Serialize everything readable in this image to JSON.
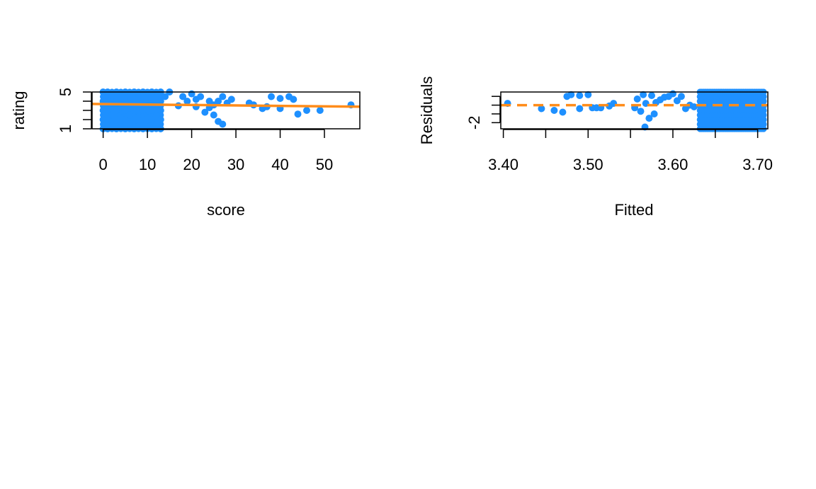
{
  "colors": {
    "points": "#1e90ff",
    "line": "#ff8c1a",
    "axis": "#000000",
    "background": "#ffffff"
  },
  "chart_data": [
    {
      "type": "scatter",
      "xlabel": "score",
      "ylabel": "rating",
      "xlim": [
        -2.5,
        58
      ],
      "ylim": [
        1,
        5
      ],
      "xticks": [
        0,
        10,
        20,
        30,
        40,
        50
      ],
      "xtick_labels": [
        "0",
        "10",
        "20",
        "30",
        "40",
        "50"
      ],
      "yticks": [
        1,
        2,
        3,
        4,
        5
      ],
      "ytick_labels": [
        "1",
        "",
        "",
        "",
        "5"
      ],
      "points": [
        [
          0,
          1
        ],
        [
          0,
          2
        ],
        [
          0,
          3
        ],
        [
          0,
          4
        ],
        [
          0,
          5
        ],
        [
          1,
          1
        ],
        [
          1,
          2
        ],
        [
          1,
          3
        ],
        [
          1,
          4
        ],
        [
          1,
          5
        ],
        [
          2,
          1.3
        ],
        [
          2,
          2.5
        ],
        [
          2,
          3.5
        ],
        [
          2,
          4.6
        ],
        [
          3,
          1
        ],
        [
          3,
          2
        ],
        [
          3,
          3
        ],
        [
          3,
          4
        ],
        [
          3,
          5
        ],
        [
          4,
          1.2
        ],
        [
          4,
          2.2
        ],
        [
          4,
          3.3
        ],
        [
          4,
          4.4
        ],
        [
          5,
          1
        ],
        [
          5,
          2
        ],
        [
          5,
          3
        ],
        [
          5,
          4
        ],
        [
          5,
          5
        ],
        [
          6,
          1.5
        ],
        [
          6,
          2.5
        ],
        [
          6,
          3.5
        ],
        [
          6,
          4.5
        ],
        [
          7,
          1
        ],
        [
          7,
          2
        ],
        [
          7,
          3
        ],
        [
          7,
          4
        ],
        [
          7,
          5
        ],
        [
          8,
          1.3
        ],
        [
          8,
          2.3
        ],
        [
          8,
          3.3
        ],
        [
          8,
          4.3
        ],
        [
          9,
          1
        ],
        [
          9,
          2
        ],
        [
          9,
          3
        ],
        [
          9,
          4
        ],
        [
          9,
          5
        ],
        [
          10,
          1.2
        ],
        [
          10,
          2.2
        ],
        [
          10,
          3.2
        ],
        [
          10,
          4.2
        ],
        [
          11,
          1
        ],
        [
          11,
          2
        ],
        [
          11,
          3
        ],
        [
          11,
          4
        ],
        [
          11,
          5
        ],
        [
          12,
          1.4
        ],
        [
          12,
          2.4
        ],
        [
          12,
          3.4
        ],
        [
          12,
          4.4
        ],
        [
          13,
          1
        ],
        [
          13,
          2
        ],
        [
          13,
          3
        ],
        [
          13,
          4
        ],
        [
          13,
          5
        ],
        [
          14,
          4.5
        ],
        [
          15,
          5
        ],
        [
          17,
          3.5
        ],
        [
          18,
          4.5
        ],
        [
          19,
          4
        ],
        [
          20,
          4.8
        ],
        [
          21,
          4.2
        ],
        [
          21,
          3.4
        ],
        [
          22,
          4.5
        ],
        [
          23,
          2.8
        ],
        [
          24,
          3.3
        ],
        [
          24,
          4
        ],
        [
          25,
          2.5
        ],
        [
          25,
          3.6
        ],
        [
          26,
          1.8
        ],
        [
          26,
          4
        ],
        [
          27,
          4.5
        ],
        [
          27,
          1.5
        ],
        [
          28,
          3.8
        ],
        [
          29,
          4.2
        ],
        [
          33,
          3.8
        ],
        [
          34,
          3.6
        ],
        [
          36,
          3.2
        ],
        [
          37,
          3.4
        ],
        [
          38,
          4.5
        ],
        [
          40,
          4.3
        ],
        [
          40,
          3.2
        ],
        [
          42,
          4.5
        ],
        [
          43,
          4.2
        ],
        [
          44,
          2.6
        ],
        [
          46,
          3
        ],
        [
          49,
          3
        ],
        [
          56,
          3.6
        ]
      ],
      "line": {
        "style": "solid",
        "x": [
          -2.5,
          58
        ],
        "y": [
          3.7,
          3.4
        ]
      }
    },
    {
      "type": "scatter",
      "xlabel": "Fitted",
      "ylabel": "Residuals",
      "xlim": [
        3.397,
        3.712
      ],
      "ylim": [
        -2.7,
        1.5
      ],
      "xticks": [
        3.4,
        3.45,
        3.5,
        3.55,
        3.6,
        3.65,
        3.7
      ],
      "xtick_labels": [
        "3.40",
        "",
        "3.50",
        "",
        "3.60",
        "",
        "3.70"
      ],
      "yticks": [
        -2,
        -1,
        0,
        1
      ],
      "ytick_labels": [
        "-2",
        "",
        "",
        ""
      ],
      "points": [
        [
          3.405,
          0.2
        ],
        [
          3.445,
          -0.4
        ],
        [
          3.46,
          -0.6
        ],
        [
          3.47,
          -0.8
        ],
        [
          3.475,
          1.0
        ],
        [
          3.48,
          1.2
        ],
        [
          3.49,
          1.1
        ],
        [
          3.49,
          -0.4
        ],
        [
          3.5,
          1.2
        ],
        [
          3.505,
          -0.3
        ],
        [
          3.51,
          -0.3
        ],
        [
          3.515,
          -0.3
        ],
        [
          3.525,
          -0.1
        ],
        [
          3.53,
          0.2
        ],
        [
          3.555,
          -0.3
        ],
        [
          3.558,
          0.7
        ],
        [
          3.562,
          -0.7
        ],
        [
          3.565,
          1.2
        ],
        [
          3.567,
          -2.5
        ],
        [
          3.568,
          0.2
        ],
        [
          3.572,
          -1.5
        ],
        [
          3.575,
          1.1
        ],
        [
          3.578,
          -1.0
        ],
        [
          3.58,
          0.3
        ],
        [
          3.585,
          0.6
        ],
        [
          3.59,
          0.9
        ],
        [
          3.595,
          1.0
        ],
        [
          3.6,
          1.3
        ],
        [
          3.605,
          0.5
        ],
        [
          3.61,
          1.0
        ],
        [
          3.615,
          -0.4
        ],
        [
          3.62,
          0.0
        ],
        [
          3.625,
          -0.2
        ]
      ],
      "dense_band": {
        "x_start": 3.632,
        "x_end": 3.707,
        "y_start": -2.7,
        "y_end": 1.5
      },
      "line": {
        "style": "dashed",
        "x": [
          3.397,
          3.712
        ],
        "y": [
          0,
          0
        ]
      }
    }
  ]
}
